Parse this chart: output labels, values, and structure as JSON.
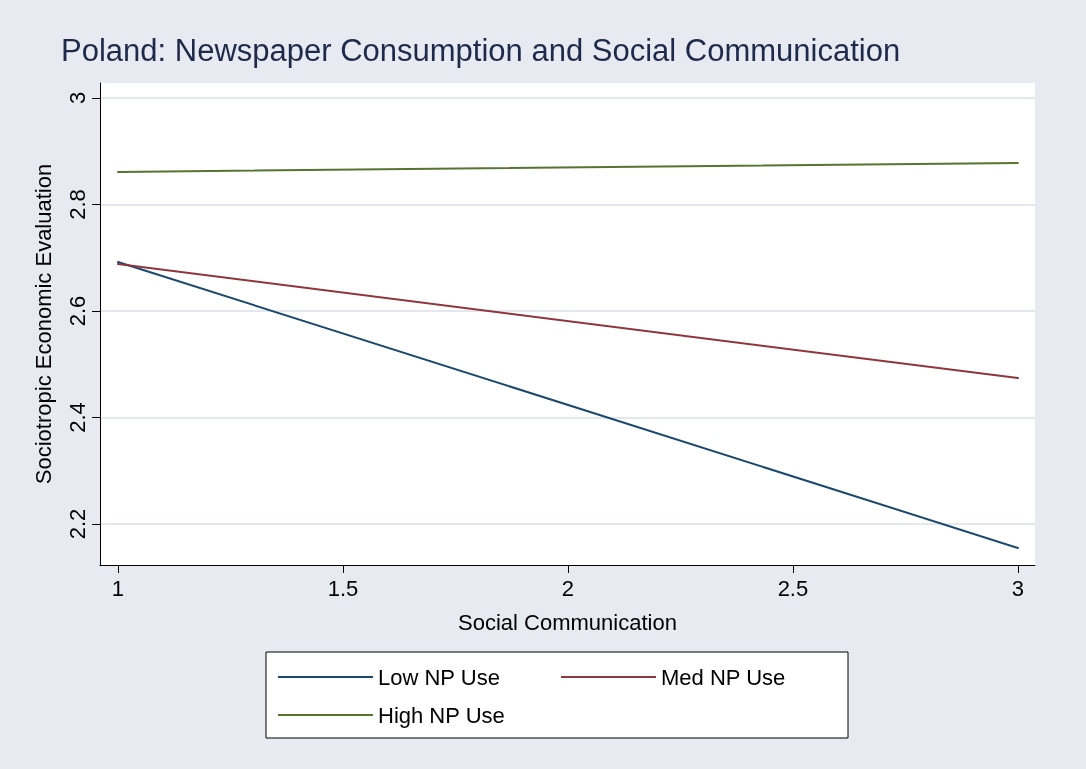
{
  "chart_data": {
    "type": "line",
    "title": "Poland: Newspaper Consumption and Social Communication",
    "xlabel": "Social Communication",
    "ylabel": "Sociotropic Economic Evaluation",
    "x": [
      1,
      3
    ],
    "series": [
      {
        "name": "Low NP Use",
        "color": "#1a476f",
        "values": [
          2.692,
          2.155
        ]
      },
      {
        "name": "Med NP Use",
        "color": "#90353b",
        "values": [
          2.688,
          2.474
        ]
      },
      {
        "name": "High NP Use",
        "color": "#55752f",
        "values": [
          2.861,
          2.878
        ]
      }
    ],
    "xlim": [
      0.96,
      3.038
    ],
    "xticks": [
      1,
      1.5,
      2,
      2.5,
      3
    ],
    "ylim": [
      2.123,
      3.028
    ],
    "yticks": [
      2.2,
      2.4,
      2.6,
      2.8,
      3
    ],
    "grid": "y",
    "legend": "bottom",
    "marker": "none",
    "line_style": "solid"
  }
}
